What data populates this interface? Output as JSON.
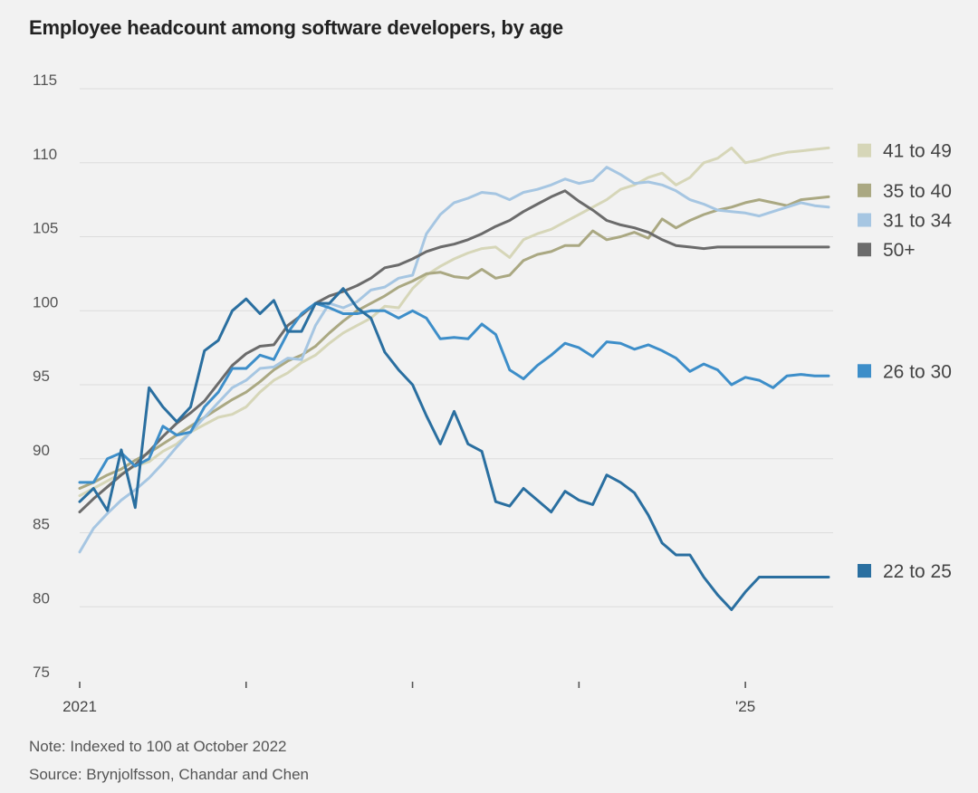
{
  "chart_data": {
    "type": "line",
    "title": "Employee headcount among software developers, by age",
    "ylim": [
      75,
      115
    ],
    "yticks": [
      "115",
      "110",
      "105",
      "100",
      "95",
      "90",
      "85",
      "80",
      "75"
    ],
    "x_tick_labels": [
      {
        "month": 0,
        "label": "2021"
      },
      {
        "month": 48,
        "label": "'25"
      }
    ],
    "x_minor_ticks": [
      12,
      24,
      36
    ],
    "x_range_months": [
      0,
      54
    ],
    "grid": true,
    "note": "Note: Indexed to 100 at October 2022",
    "source": "Source: Brynjolfsson, Chandar and Chen",
    "series": [
      {
        "name": "41 to 49",
        "color": "#d6d6b8",
        "x_month": [
          0,
          1,
          2,
          3,
          4,
          5,
          6,
          7,
          8,
          9,
          10,
          11,
          12,
          13,
          14,
          15,
          16,
          17,
          18,
          19,
          20,
          21,
          22,
          23,
          24,
          25,
          26,
          27,
          28,
          29,
          30,
          31,
          32,
          33,
          34,
          35,
          36,
          37,
          38,
          39,
          40,
          41,
          42,
          43,
          44,
          45,
          46,
          47,
          48,
          49,
          50,
          51,
          52,
          53,
          54
        ],
        "values": [
          87.5,
          88,
          88.5,
          89,
          89.5,
          89.8,
          90.5,
          91,
          91.8,
          92.3,
          92.8,
          93,
          93.5,
          94.5,
          95.3,
          95.8,
          96.5,
          97,
          97.8,
          98.5,
          99,
          99.5,
          100.3,
          100.2,
          101.5,
          102.4,
          103,
          103.5,
          103.9,
          104.2,
          104.3,
          103.6,
          104.8,
          105.2,
          105.5,
          106,
          106.5,
          107,
          107.5,
          108.2,
          108.5,
          109,
          109.3,
          108.5,
          109,
          110,
          110.3,
          111,
          110,
          110.2,
          110.5,
          110.7,
          110.8,
          110.9,
          111
        ]
      },
      {
        "name": "35 to 40",
        "color": "#aaa882",
        "x_month": [
          0,
          1,
          2,
          3,
          4,
          5,
          6,
          7,
          8,
          9,
          10,
          11,
          12,
          13,
          14,
          15,
          16,
          17,
          18,
          19,
          20,
          21,
          22,
          23,
          24,
          25,
          26,
          27,
          28,
          29,
          30,
          31,
          32,
          33,
          34,
          35,
          36,
          37,
          38,
          39,
          40,
          41,
          42,
          43,
          44,
          45,
          46,
          47,
          48,
          49,
          50,
          51,
          52,
          53,
          54
        ],
        "values": [
          88,
          88.4,
          88.9,
          89.3,
          89.9,
          90.4,
          91,
          91.6,
          92.2,
          92.8,
          93.4,
          94,
          94.5,
          95.2,
          96,
          96.6,
          97,
          97.6,
          98.5,
          99.3,
          100,
          100.5,
          101,
          101.6,
          102,
          102.5,
          102.6,
          102.3,
          102.2,
          102.8,
          102.2,
          102.4,
          103.4,
          103.8,
          104,
          104.4,
          104.4,
          105.4,
          104.8,
          105,
          105.3,
          104.9,
          106.2,
          105.6,
          106.1,
          106.5,
          106.8,
          107,
          107.3,
          107.5,
          107.3,
          107.1,
          107.5,
          107.6,
          107.7
        ]
      },
      {
        "name": "31 to 34",
        "color": "#a6c6e2",
        "x_month": [
          0,
          1,
          2,
          3,
          4,
          5,
          6,
          7,
          8,
          9,
          10,
          11,
          12,
          13,
          14,
          15,
          16,
          17,
          18,
          19,
          20,
          21,
          22,
          23,
          24,
          25,
          26,
          27,
          28,
          29,
          30,
          31,
          32,
          33,
          34,
          35,
          36,
          37,
          38,
          39,
          40,
          41,
          42,
          43,
          44,
          45,
          46,
          47,
          48,
          49,
          50,
          51,
          52,
          53,
          54
        ],
        "values": [
          83.7,
          85.3,
          86.3,
          87.2,
          87.9,
          88.7,
          89.7,
          90.8,
          91.8,
          92.8,
          93.8,
          94.8,
          95.3,
          96.1,
          96.2,
          96.8,
          96.7,
          99,
          100.5,
          100.2,
          100.6,
          101.4,
          101.6,
          102.2,
          102.4,
          105.2,
          106.5,
          107.3,
          107.6,
          108,
          107.9,
          107.5,
          108,
          108.2,
          108.5,
          108.9,
          108.6,
          108.8,
          109.7,
          109.2,
          108.6,
          108.7,
          108.5,
          108.1,
          107.5,
          107.2,
          106.8,
          106.7,
          106.6,
          106.4,
          106.7,
          107,
          107.3,
          107.1,
          107
        ]
      },
      {
        "name": "50+",
        "color": "#6b6b6b",
        "x_month": [
          0,
          1,
          2,
          3,
          4,
          5,
          6,
          7,
          8,
          9,
          10,
          11,
          12,
          13,
          14,
          15,
          16,
          17,
          18,
          19,
          20,
          21,
          22,
          23,
          24,
          25,
          26,
          27,
          28,
          29,
          30,
          31,
          32,
          33,
          34,
          35,
          36,
          37,
          38,
          39,
          40,
          41,
          42,
          43,
          44,
          45,
          46,
          47,
          48,
          49,
          50,
          51,
          52,
          53,
          54
        ],
        "values": [
          86.4,
          87.3,
          88.1,
          88.9,
          89.6,
          90.5,
          91.5,
          92.4,
          93.1,
          93.9,
          95.1,
          96.3,
          97.1,
          97.6,
          97.7,
          99,
          99.7,
          100.5,
          101,
          101.3,
          101.7,
          102.2,
          102.9,
          103.1,
          103.5,
          104,
          104.3,
          104.5,
          104.8,
          105.2,
          105.7,
          106.1,
          106.7,
          107.2,
          107.7,
          108.1,
          107.4,
          106.8,
          106.1,
          105.8,
          105.6,
          105.3,
          104.8,
          104.4,
          104.3,
          104.2,
          104.3,
          104.3,
          104.3,
          104.3,
          104.3,
          104.3,
          104.3,
          104.3,
          104.3
        ]
      },
      {
        "name": "26 to 30",
        "color": "#3d8ec9",
        "x_month": [
          0,
          1,
          2,
          3,
          4,
          5,
          6,
          7,
          8,
          9,
          10,
          11,
          12,
          13,
          14,
          15,
          16,
          17,
          18,
          19,
          20,
          21,
          22,
          23,
          24,
          25,
          26,
          27,
          28,
          29,
          30,
          31,
          32,
          33,
          34,
          35,
          36,
          37,
          38,
          39,
          40,
          41,
          42,
          43,
          44,
          45,
          46,
          47,
          48,
          49,
          50,
          51,
          52,
          53,
          54
        ],
        "values": [
          88.4,
          88.4,
          90,
          90.4,
          89.5,
          90,
          92.2,
          91.6,
          91.8,
          93.5,
          94.5,
          96.1,
          96.1,
          97,
          96.7,
          98.5,
          99.8,
          100.5,
          100.2,
          99.8,
          99.8,
          100,
          100,
          99.5,
          100,
          99.5,
          98.1,
          98.2,
          98.1,
          99.1,
          98.4,
          96,
          95.4,
          96.3,
          97,
          97.8,
          97.5,
          96.9,
          97.9,
          97.8,
          97.4,
          97.7,
          97.3,
          96.8,
          95.9,
          96.4,
          96,
          95,
          95.5,
          95.3,
          94.8,
          95.6,
          95.7,
          95.6,
          95.6
        ]
      },
      {
        "name": "22 to 25",
        "color": "#2a6fa0",
        "x_month": [
          0,
          1,
          2,
          3,
          4,
          5,
          6,
          7,
          8,
          9,
          10,
          11,
          12,
          13,
          14,
          15,
          16,
          17,
          18,
          19,
          20,
          21,
          22,
          23,
          24,
          25,
          26,
          27,
          28,
          29,
          30,
          31,
          32,
          33,
          34,
          35,
          36,
          37,
          38,
          39,
          40,
          41,
          42,
          43,
          44,
          45,
          46,
          47,
          48,
          49,
          50,
          51,
          52,
          53,
          54
        ],
        "values": [
          87.1,
          88,
          86.5,
          90.6,
          86.7,
          94.8,
          93.5,
          92.5,
          93.5,
          97.3,
          98,
          100,
          100.8,
          99.8,
          100.7,
          98.6,
          98.6,
          100.5,
          100.5,
          101.5,
          100.2,
          99.5,
          97.2,
          96,
          95,
          92.9,
          91,
          93.2,
          91,
          90.5,
          87.1,
          86.8,
          88,
          87.2,
          86.4,
          87.8,
          87.2,
          86.9,
          88.9,
          88.4,
          87.7,
          86.2,
          84.3,
          83.5,
          83.5,
          82,
          80.8,
          79.8,
          81,
          82,
          82,
          82,
          82,
          82,
          82
        ]
      }
    ]
  },
  "legend": [
    {
      "label": "41 to 49",
      "color": "#d6d6b8",
      "y_value": 110.8
    },
    {
      "label": "35 to 40",
      "color": "#aaa882",
      "y_value": 108.1
    },
    {
      "label": "31 to 34",
      "color": "#a6c6e2",
      "y_value": 106.1
    },
    {
      "label": "50+",
      "color": "#6b6b6b",
      "y_value": 104.1
    },
    {
      "label": "26 to 30",
      "color": "#3d8ec9",
      "y_value": 95.9
    },
    {
      "label": "22 to 25",
      "color": "#2a6fa0",
      "y_value": 82.4
    }
  ]
}
